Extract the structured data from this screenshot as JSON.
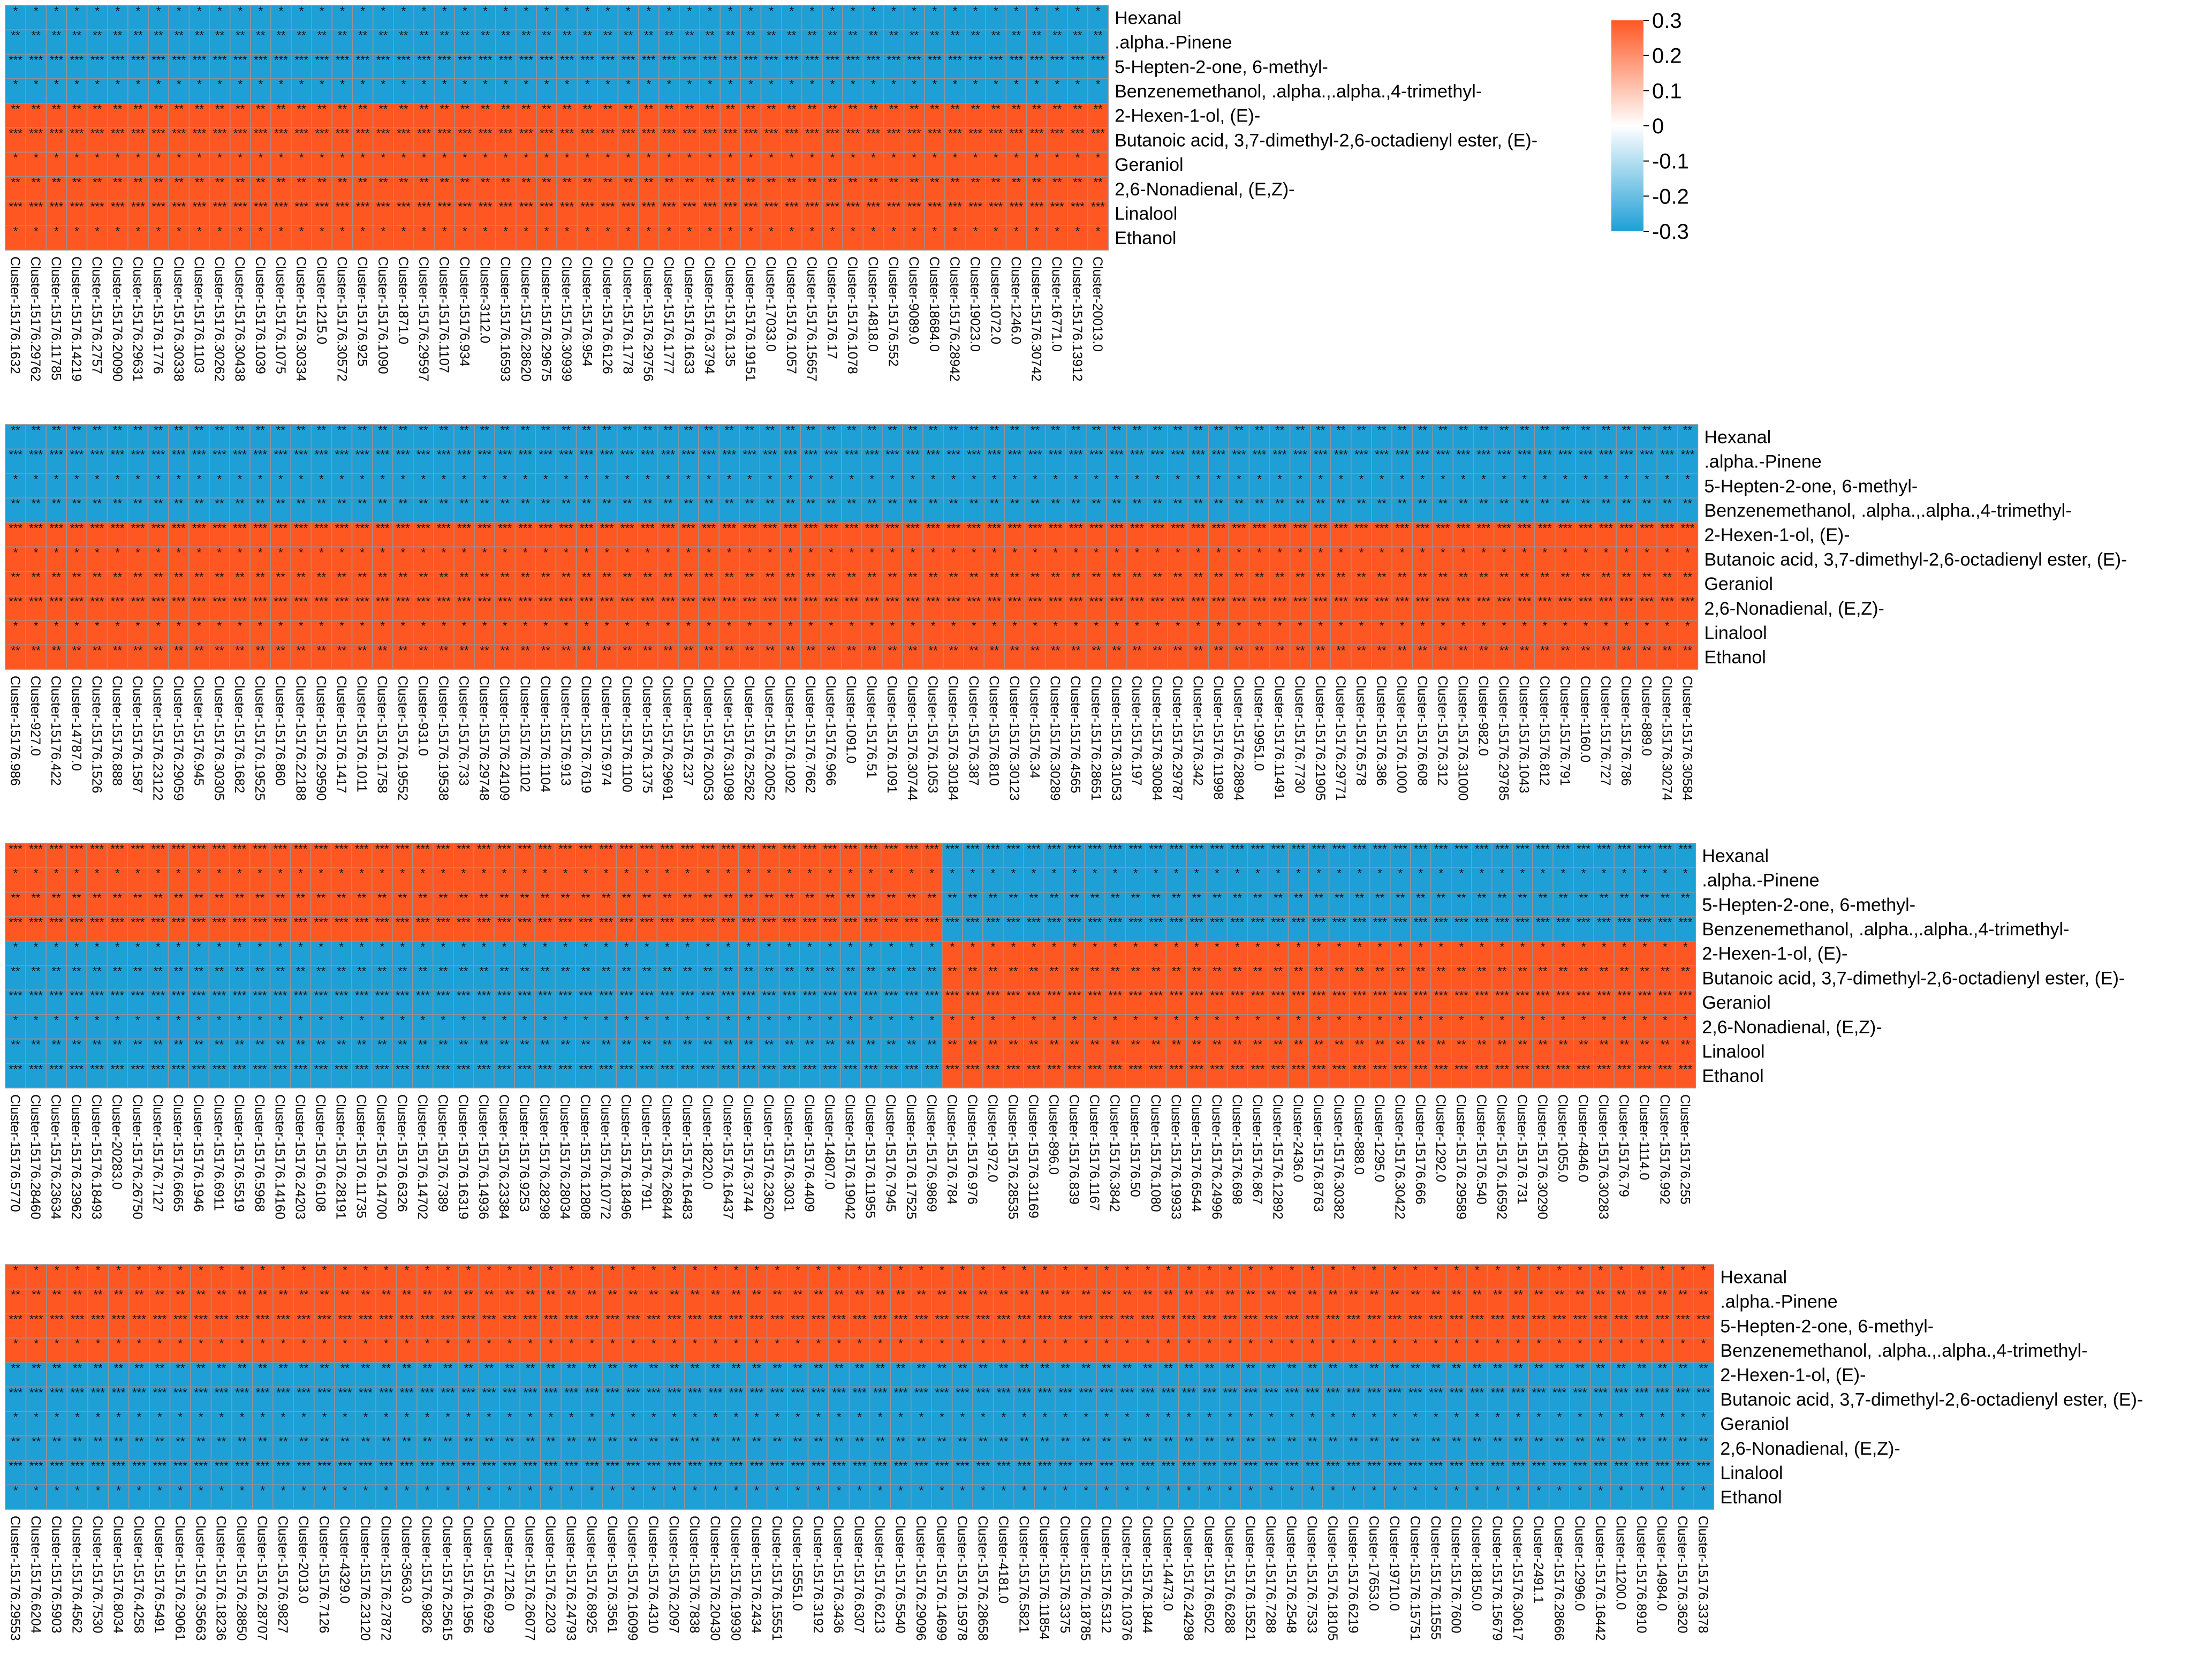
{
  "chart_data": {
    "type": "heatmap",
    "title": "",
    "colorscale": {
      "min": -0.3,
      "max": 0.3,
      "low_color": "#1E9FD6",
      "mid_color": "#FFFFFF",
      "high_color": "#FF5722",
      "ticks": [
        0.3,
        0.2,
        0.1,
        0,
        -0.1,
        -0.2,
        -0.3
      ],
      "tick_labels": [
        "0.3",
        "0.2",
        "0.1",
        "0",
        "-0.1",
        "-0.2",
        "-0.3"
      ]
    },
    "grid_color": "#9C8F8F",
    "panels": [
      {
        "rows": [
          "Hexanal",
          ".alpha.-Pinene",
          "5-Hepten-2-one, 6-methyl-",
          "Benzenemethanol, .alpha.,.alpha.,4-trimethyl-",
          "2-Hexen-1-ol, (E)-",
          "Butanoic acid, 3,7-dimethyl-2,6-octadienyl ester, (E)-",
          "Geraniol",
          "2,6-Nonadienal, (E,Z)-",
          "Linalool",
          "Ethanol"
        ],
        "row_signs": [
          -1,
          -1,
          -1,
          -1,
          1,
          1,
          1,
          1,
          1,
          1
        ],
        "columns": [
          "Cluster-15176.1632",
          "Cluster-15176.29762",
          "Cluster-15176.11785",
          "Cluster-15176.14219",
          "Cluster-15176.2757",
          "Cluster-15176.20090",
          "Cluster-15176.29631",
          "Cluster-15176.1776",
          "Cluster-15176.30338",
          "Cluster-15176.1103",
          "Cluster-15176.30262",
          "Cluster-15176.30438",
          "Cluster-15176.1039",
          "Cluster-15176.1075",
          "Cluster-15176.30334",
          "Cluster-1215.0",
          "Cluster-15176.30572",
          "Cluster-15176.925",
          "Cluster-15176.1090",
          "Cluster-1871.0",
          "Cluster-15176.29597",
          "Cluster-15176.1107",
          "Cluster-15176.934",
          "Cluster-3112.0",
          "Cluster-15176.16593",
          "Cluster-15176.28620",
          "Cluster-15176.29675",
          "Cluster-15176.30939",
          "Cluster-15176.954",
          "Cluster-15176.6126",
          "Cluster-15176.1778",
          "Cluster-15176.29756",
          "Cluster-15176.1777",
          "Cluster-15176.1633",
          "Cluster-15176.3794",
          "Cluster-15176.135",
          "Cluster-15176.19151",
          "Cluster-17033.0",
          "Cluster-15176.1057",
          "Cluster-15176.15657",
          "Cluster-15176.17",
          "Cluster-15176.1078",
          "Cluster-14818.0",
          "Cluster-15176.552",
          "Cluster-9089.0",
          "Cluster-18684.0",
          "Cluster-15176.28942",
          "Cluster-19023.0",
          "Cluster-1072.0",
          "Cluster-1246.0",
          "Cluster-15176.30742",
          "Cluster-16771.0",
          "Cluster-15176.13912",
          "Cluster-20013.0"
        ],
        "column_signs": [],
        "cell_value": 0.3,
        "stars": [
          "*",
          "**",
          "***"
        ]
      },
      {
        "rows": [
          "Hexanal",
          ".alpha.-Pinene",
          "5-Hepten-2-one, 6-methyl-",
          "Benzenemethanol, .alpha.,.alpha.,4-trimethyl-",
          "2-Hexen-1-ol, (E)-",
          "Butanoic acid, 3,7-dimethyl-2,6-octadienyl ester, (E)-",
          "Geraniol",
          "2,6-Nonadienal, (E,Z)-",
          "Linalool",
          "Ethanol"
        ],
        "row_signs": [
          -1,
          -1,
          -1,
          -1,
          1,
          1,
          1,
          1,
          1,
          1
        ],
        "columns": [
          "Cluster-15176.986",
          "Cluster-927.0",
          "Cluster-15176.422",
          "Cluster-14787.0",
          "Cluster-15176.1526",
          "Cluster-15176.888",
          "Cluster-15176.1587",
          "Cluster-15176.23122",
          "Cluster-15176.29059",
          "Cluster-15176.945",
          "Cluster-15176.30305",
          "Cluster-15176.1682",
          "Cluster-15176.19525",
          "Cluster-15176.860",
          "Cluster-15176.22188",
          "Cluster-15176.29590",
          "Cluster-15176.1417",
          "Cluster-15176.1011",
          "Cluster-15176.1758",
          "Cluster-15176.19552",
          "Cluster-931.0",
          "Cluster-15176.19538",
          "Cluster-15176.733",
          "Cluster-15176.29748",
          "Cluster-15176.24109",
          "Cluster-15176.1102",
          "Cluster-15176.1104",
          "Cluster-15176.913",
          "Cluster-15176.7619",
          "Cluster-15176.974",
          "Cluster-15176.1100",
          "Cluster-15176.1375",
          "Cluster-15176.29691",
          "Cluster-15176.237",
          "Cluster-15176.20053",
          "Cluster-15176.31098",
          "Cluster-15176.25262",
          "Cluster-15176.20052",
          "Cluster-15176.1092",
          "Cluster-15176.7662",
          "Cluster-15176.966",
          "Cluster-1091.0",
          "Cluster-15176.51",
          "Cluster-15176.1091",
          "Cluster-15176.30744",
          "Cluster-15176.1053",
          "Cluster-15176.30184",
          "Cluster-15176.387",
          "Cluster-15176.810",
          "Cluster-15176.30123",
          "Cluster-15176.34",
          "Cluster-15176.30289",
          "Cluster-15176.4565",
          "Cluster-15176.28651",
          "Cluster-15176.31053",
          "Cluster-15176.197",
          "Cluster-15176.30084",
          "Cluster-15176.29787",
          "Cluster-15176.342",
          "Cluster-15176.11998",
          "Cluster-15176.28894",
          "Cluster-19951.0",
          "Cluster-15176.11491",
          "Cluster-15176.7730",
          "Cluster-15176.21905",
          "Cluster-15176.29771",
          "Cluster-15176.578",
          "Cluster-15176.386",
          "Cluster-15176.1000",
          "Cluster-15176.608",
          "Cluster-15176.312",
          "Cluster-15176.31000",
          "Cluster-982.0",
          "Cluster-15176.29785",
          "Cluster-15176.1043",
          "Cluster-15176.812",
          "Cluster-15176.791",
          "Cluster-1160.0",
          "Cluster-15176.727",
          "Cluster-15176.786",
          "Cluster-889.0",
          "Cluster-15176.30274",
          "Cluster-15176.30584"
        ],
        "column_signs": [],
        "cell_value": 0.3,
        "stars": [
          "*",
          "**",
          "***"
        ]
      },
      {
        "rows": [
          "Hexanal",
          ".alpha.-Pinene",
          "5-Hepten-2-one, 6-methyl-",
          "Benzenemethanol, .alpha.,.alpha.,4-trimethyl-",
          "2-Hexen-1-ol, (E)-",
          "Butanoic acid, 3,7-dimethyl-2,6-octadienyl ester, (E)-",
          "Geraniol",
          "2,6-Nonadienal, (E,Z)-",
          "Linalool",
          "Ethanol"
        ],
        "row_signs": [
          1,
          1,
          1,
          1,
          -1,
          -1,
          -1,
          -1,
          -1,
          -1
        ],
        "columns": [
          "Cluster-15176.5770",
          "Cluster-15176.28460",
          "Cluster-15176.23634",
          "Cluster-15176.23962",
          "Cluster-15176.18493",
          "Cluster-20283.0",
          "Cluster-15176.26750",
          "Cluster-15176.7127",
          "Cluster-15176.6665",
          "Cluster-15176.1946",
          "Cluster-15176.6911",
          "Cluster-15176.5519",
          "Cluster-15176.5968",
          "Cluster-15176.14160",
          "Cluster-15176.24203",
          "Cluster-15176.6108",
          "Cluster-15176.28191",
          "Cluster-15176.11735",
          "Cluster-15176.14700",
          "Cluster-15176.6326",
          "Cluster-15176.14702",
          "Cluster-15176.7389",
          "Cluster-15176.16319",
          "Cluster-15176.14936",
          "Cluster-15176.23384",
          "Cluster-15176.9253",
          "Cluster-15176.28298",
          "Cluster-15176.28034",
          "Cluster-15176.12808",
          "Cluster-15176.10772",
          "Cluster-15176.18496",
          "Cluster-15176.7911",
          "Cluster-15176.26844",
          "Cluster-15176.16483",
          "Cluster-18220.0",
          "Cluster-15176.16437",
          "Cluster-15176.3744",
          "Cluster-15176.23620",
          "Cluster-15176.3031",
          "Cluster-15176.4409",
          "Cluster-14807.0",
          "Cluster-15176.19042",
          "Cluster-15176.11955",
          "Cluster-15176.7945",
          "Cluster-15176.17525",
          "Cluster-15176.9869",
          "Cluster-15176.784",
          "Cluster-15176.976",
          "Cluster-1972.0",
          "Cluster-15176.28535",
          "Cluster-15176.31169",
          "Cluster-896.0",
          "Cluster-15176.839",
          "Cluster-15176.1167",
          "Cluster-15176.3842",
          "Cluster-15176.50",
          "Cluster-15176.1080",
          "Cluster-15176.19933",
          "Cluster-15176.6544",
          "Cluster-15176.24996",
          "Cluster-15176.698",
          "Cluster-15176.867",
          "Cluster-15176.12892",
          "Cluster-2436.0",
          "Cluster-15176.8763",
          "Cluster-15176.30382",
          "Cluster-888.0",
          "Cluster-1295.0",
          "Cluster-15176.30422",
          "Cluster-15176.666",
          "Cluster-1292.0",
          "Cluster-15176.29589",
          "Cluster-15176.540",
          "Cluster-15176.16592",
          "Cluster-15176.731",
          "Cluster-15176.30290",
          "Cluster-1055.0",
          "Cluster-4846.0",
          "Cluster-15176.30283",
          "Cluster-15176.79",
          "Cluster-1114.0",
          "Cluster-15176.992",
          "Cluster-15176.255"
        ],
        "column_signs": [
          1,
          1,
          1,
          1,
          1,
          1,
          1,
          1,
          1,
          1,
          1,
          1,
          1,
          1,
          1,
          1,
          1,
          1,
          1,
          1,
          1,
          1,
          1,
          1,
          1,
          1,
          1,
          1,
          1,
          1,
          1,
          1,
          1,
          1,
          1,
          1,
          1,
          1,
          1,
          1,
          1,
          1,
          1,
          1,
          1,
          1,
          -1,
          -1,
          -1,
          -1,
          -1,
          -1,
          -1,
          -1,
          -1,
          -1,
          -1,
          -1,
          -1,
          -1,
          -1,
          -1,
          -1,
          -1,
          -1,
          -1,
          -1,
          -1,
          -1,
          -1,
          -1,
          -1,
          -1,
          -1,
          -1,
          -1,
          -1,
          -1,
          -1,
          -1,
          -1,
          -1,
          -1
        ],
        "cell_value": 0.3,
        "stars": [
          "*",
          "**",
          "***"
        ]
      },
      {
        "rows": [
          "Hexanal",
          ".alpha.-Pinene",
          "5-Hepten-2-one, 6-methyl-",
          "Benzenemethanol, .alpha.,.alpha.,4-trimethyl-",
          "2-Hexen-1-ol, (E)-",
          "Butanoic acid, 3,7-dimethyl-2,6-octadienyl ester, (E)-",
          "Geraniol",
          "2,6-Nonadienal, (E,Z)-",
          "Linalool",
          "Ethanol"
        ],
        "row_signs": [
          1,
          1,
          1,
          1,
          -1,
          -1,
          -1,
          -1,
          -1,
          -1
        ],
        "columns": [
          "Cluster-15176.29553",
          "Cluster-15176.6204",
          "Cluster-15176.5903",
          "Cluster-15176.4562",
          "Cluster-15176.7530",
          "Cluster-15176.8034",
          "Cluster-15176.4258",
          "Cluster-15176.5491",
          "Cluster-15176.29061",
          "Cluster-15176.35663",
          "Cluster-15176.18236",
          "Cluster-15176.28850",
          "Cluster-15176.28707",
          "Cluster-15176.9827",
          "Cluster-2013.0",
          "Cluster-15176.7126",
          "Cluster-4329.0",
          "Cluster-15176.23120",
          "Cluster-15176.27872",
          "Cluster-3563.0",
          "Cluster-15176.9826",
          "Cluster-15176.25615",
          "Cluster-15176.1956",
          "Cluster-15176.6929",
          "Cluster-17126.0",
          "Cluster-15176.26077",
          "Cluster-15176.2203",
          "Cluster-15176.24793",
          "Cluster-15176.8925",
          "Cluster-15176.3561",
          "Cluster-15176.16099",
          "Cluster-15176.4310",
          "Cluster-15176.2097",
          "Cluster-15176.7838",
          "Cluster-15176.20430",
          "Cluster-15176.19930",
          "Cluster-15176.2434",
          "Cluster-15176.15551",
          "Cluster-15551.0",
          "Cluster-15176.3192",
          "Cluster-15176.3436",
          "Cluster-15176.6307",
          "Cluster-15176.6213",
          "Cluster-15176.5540",
          "Cluster-15176.29096",
          "Cluster-15176.14699",
          "Cluster-15176.15978",
          "Cluster-15176.28658",
          "Cluster-4181.0",
          "Cluster-15176.5821",
          "Cluster-15176.11854",
          "Cluster-15176.3375",
          "Cluster-15176.18785",
          "Cluster-15176.5312",
          "Cluster-15176.10376",
          "Cluster-15176.1844",
          "Cluster-14473.0",
          "Cluster-15176.24298",
          "Cluster-15176.6502",
          "Cluster-15176.6288",
          "Cluster-15176.15521",
          "Cluster-15176.7288",
          "Cluster-15176.2548",
          "Cluster-15176.7533",
          "Cluster-15176.18105",
          "Cluster-15176.6219",
          "Cluster-17653.0",
          "Cluster-19710.0",
          "Cluster-15176.15751",
          "Cluster-15176.11555",
          "Cluster-15176.7600",
          "Cluster-18150.0",
          "Cluster-15176.15679",
          "Cluster-15176.30617",
          "Cluster-2491.1",
          "Cluster-15176.28666",
          "Cluster-12996.0",
          "Cluster-15176.16442",
          "Cluster-11200.0",
          "Cluster-15176.8910",
          "Cluster-14984.0",
          "Cluster-15176.3620",
          "Cluster-15176.3378"
        ],
        "column_signs": [],
        "cell_value": 0.3,
        "stars": [
          "*",
          "**",
          "***"
        ]
      }
    ]
  }
}
